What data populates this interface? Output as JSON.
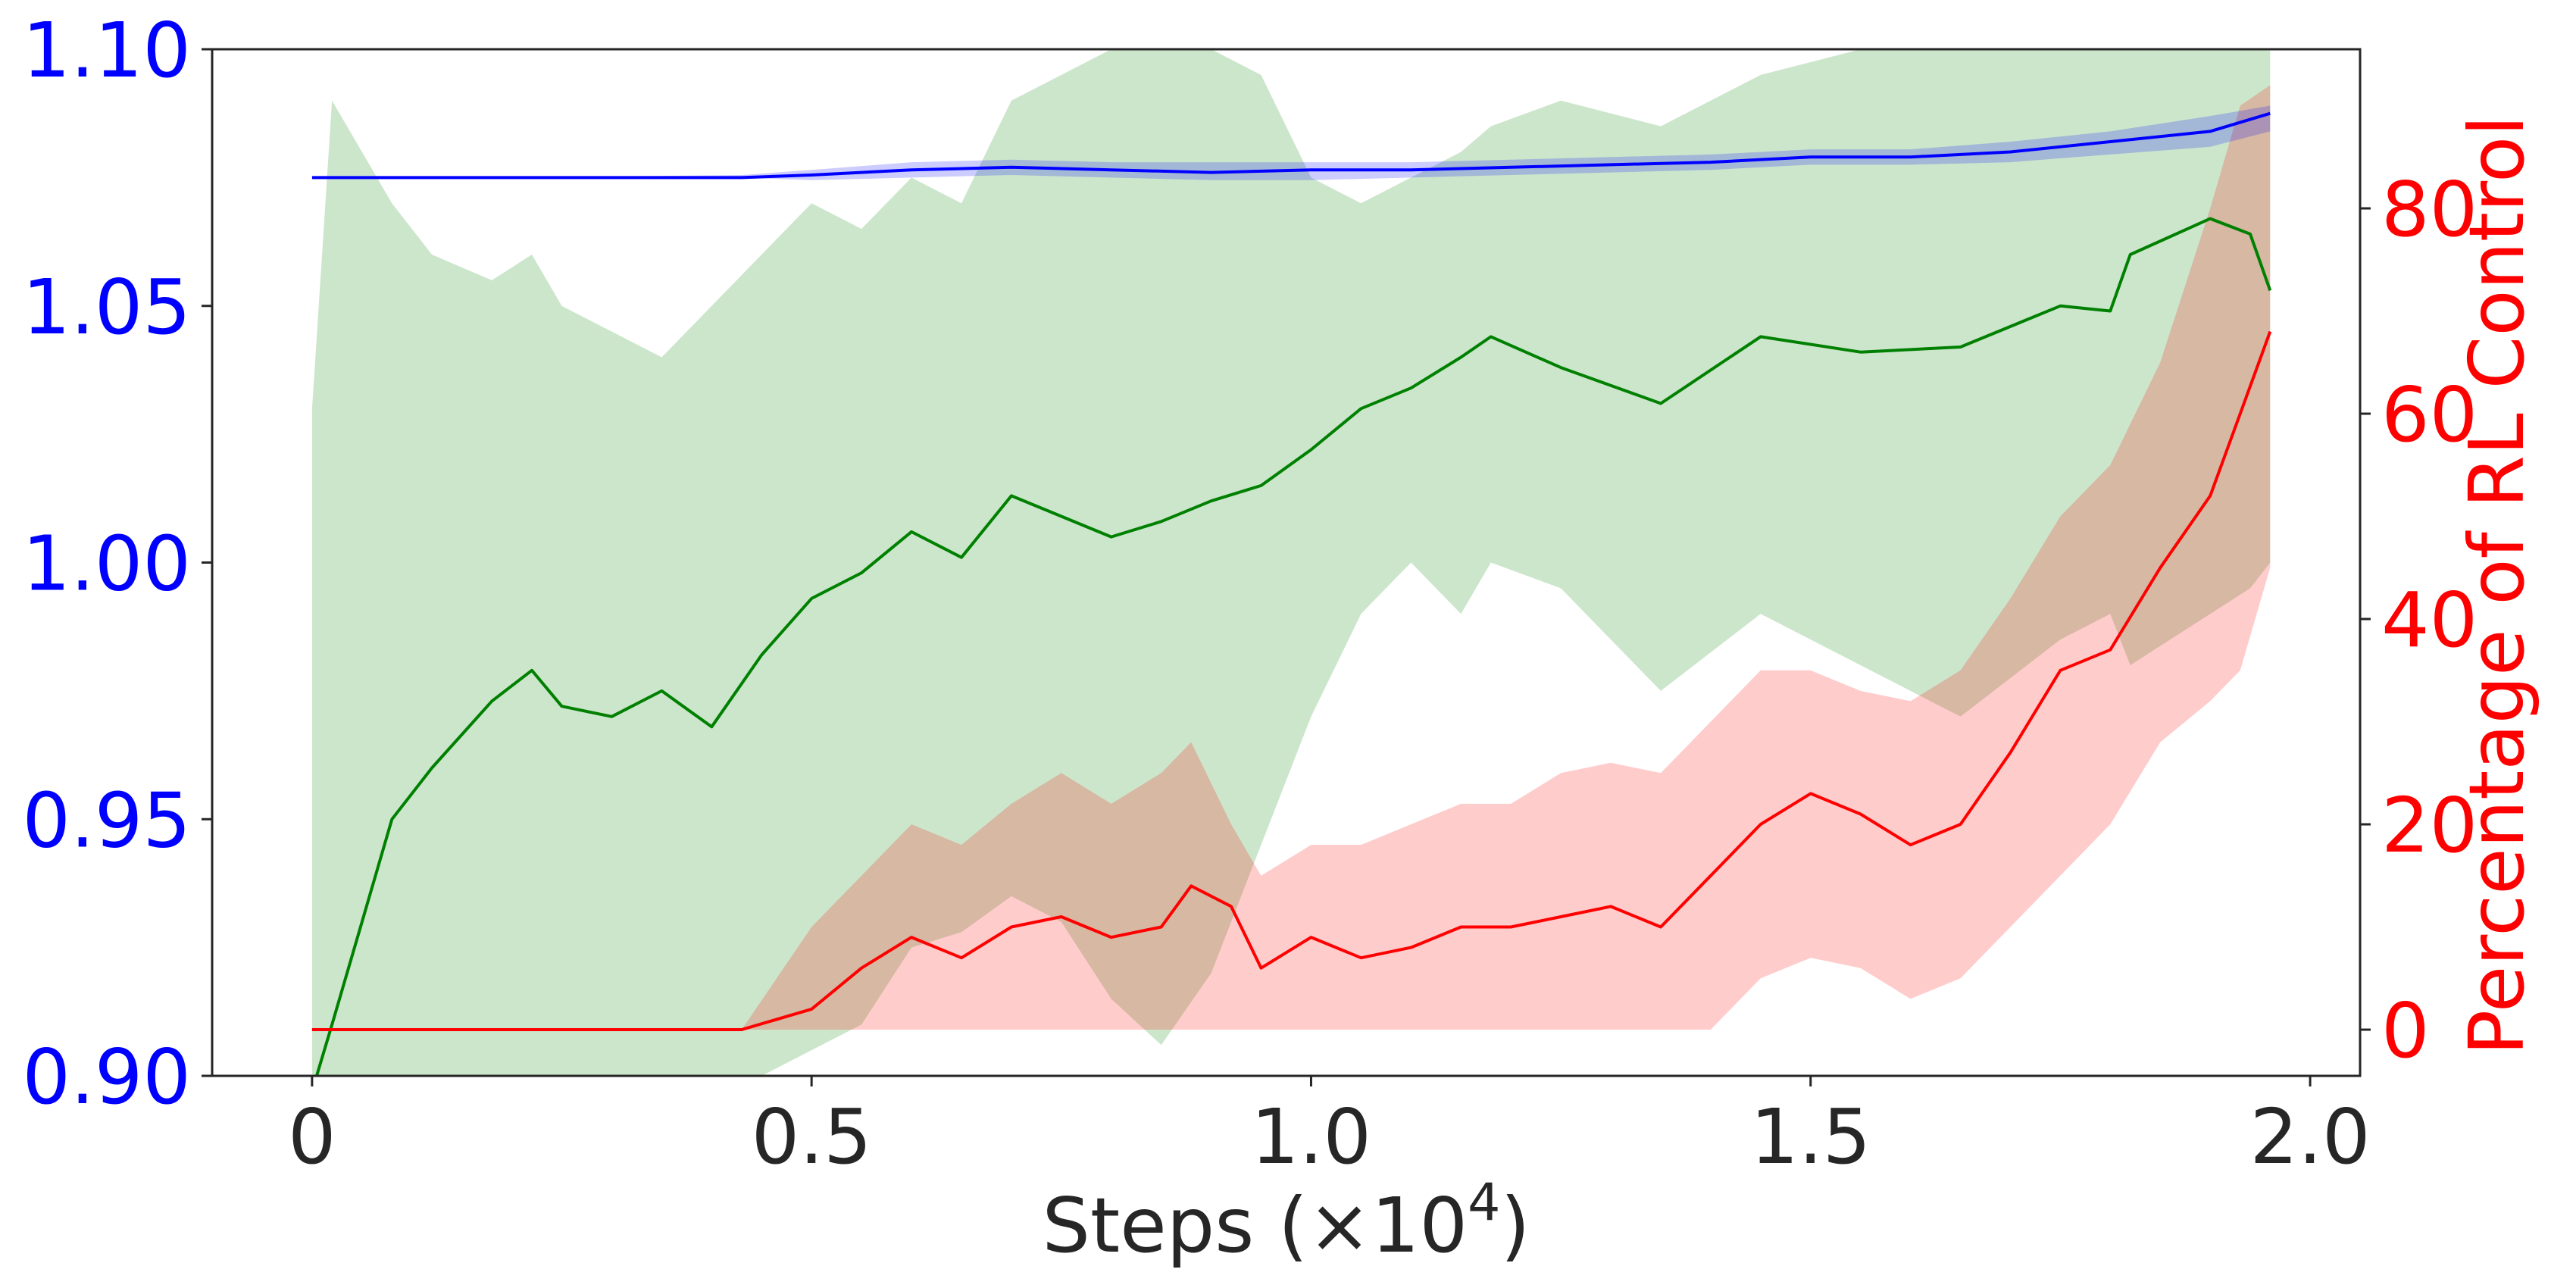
{
  "chart_data": {
    "type": "line",
    "title": "",
    "xlabel": "Steps (×10⁴)",
    "xlabel_base": "Steps (×10",
    "xlabel_exp": "4",
    "xlabel_close": ")",
    "ylabel_left": "",
    "ylabel_right": "Percentage of RL Control",
    "xlim": [
      -0.1,
      2.05
    ],
    "ylim_left": [
      0.9,
      1.1
    ],
    "ylim_right": [
      -4.5,
      95.5
    ],
    "xticks": [
      0,
      0.5,
      1.0,
      1.5,
      2.0
    ],
    "xtick_labels": [
      "0",
      "0.5",
      "1.0",
      "1.5",
      "2.0"
    ],
    "yticks_left": [
      0.9,
      0.95,
      1.0,
      1.05,
      1.1
    ],
    "ytick_labels_left": [
      "0.90",
      "0.95",
      "1.00",
      "1.05",
      "1.10"
    ],
    "yticks_right": [
      0,
      20,
      40,
      60,
      80
    ],
    "ytick_labels_right": [
      "0",
      "20",
      "40",
      "60",
      "80"
    ],
    "grid": false,
    "legend": "none",
    "colors": {
      "blue": "#0000ff",
      "green": "#008000",
      "red": "#ff0000",
      "axis_text": "#262626"
    },
    "series": [
      {
        "color": "blue",
        "axis": "left",
        "x": [
          0,
          0.2,
          0.43,
          0.5,
          0.6,
          0.7,
          0.8,
          0.9,
          1.0,
          1.1,
          1.2,
          1.3,
          1.4,
          1.5,
          1.6,
          1.7,
          1.8,
          1.9,
          1.96
        ],
        "y": [
          1.075,
          1.075,
          1.075,
          1.0755,
          1.0765,
          1.077,
          1.0765,
          1.076,
          1.0765,
          1.0765,
          1.077,
          1.0775,
          1.078,
          1.079,
          1.079,
          1.08,
          1.082,
          1.084,
          1.0875
        ],
        "band_lower": [
          1.075,
          1.075,
          1.075,
          1.0745,
          1.075,
          1.0755,
          1.075,
          1.0745,
          1.0745,
          1.075,
          1.0755,
          1.076,
          1.0765,
          1.0775,
          1.0775,
          1.078,
          1.0795,
          1.081,
          1.084
        ],
        "band_upper": [
          1.075,
          1.075,
          1.0755,
          1.0765,
          1.078,
          1.0785,
          1.078,
          1.078,
          1.078,
          1.078,
          1.0785,
          1.079,
          1.0795,
          1.0805,
          1.0805,
          1.082,
          1.084,
          1.087,
          1.089
        ]
      },
      {
        "color": "green",
        "axis": "left",
        "x": [
          0,
          0.02,
          0.05,
          0.08,
          0.12,
          0.18,
          0.22,
          0.25,
          0.3,
          0.35,
          0.4,
          0.45,
          0.5,
          0.55,
          0.6,
          0.65,
          0.7,
          0.75,
          0.8,
          0.85,
          0.9,
          0.95,
          1.0,
          1.05,
          1.1,
          1.15,
          1.18,
          1.25,
          1.35,
          1.45,
          1.55,
          1.65,
          1.75,
          1.8,
          1.82,
          1.9,
          1.94,
          1.96
        ],
        "y": [
          0.897,
          0.91,
          0.93,
          0.95,
          0.96,
          0.973,
          0.979,
          0.972,
          0.97,
          0.975,
          0.968,
          0.982,
          0.993,
          0.998,
          1.006,
          1.001,
          1.013,
          1.009,
          1.005,
          1.008,
          1.012,
          1.015,
          1.022,
          1.03,
          1.034,
          1.04,
          1.044,
          1.038,
          1.031,
          1.044,
          1.041,
          1.042,
          1.05,
          1.049,
          1.06,
          1.067,
          1.064,
          1.053
        ],
        "band_lower": [
          0.88,
          0.88,
          0.88,
          0.88,
          0.88,
          0.88,
          0.88,
          0.88,
          0.88,
          0.88,
          0.88,
          0.9,
          0.905,
          0.91,
          0.925,
          0.928,
          0.935,
          0.93,
          0.915,
          0.906,
          0.92,
          0.945,
          0.97,
          0.99,
          1.0,
          0.99,
          1.0,
          0.995,
          0.975,
          0.99,
          0.98,
          0.97,
          0.985,
          0.99,
          0.98,
          0.99,
          0.995,
          1.0
        ],
        "band_upper": [
          1.03,
          1.09,
          1.08,
          1.07,
          1.06,
          1.055,
          1.06,
          1.05,
          1.045,
          1.04,
          1.05,
          1.06,
          1.07,
          1.065,
          1.075,
          1.07,
          1.09,
          1.095,
          1.1,
          1.1,
          1.1,
          1.095,
          1.075,
          1.07,
          1.075,
          1.08,
          1.085,
          1.09,
          1.085,
          1.095,
          1.1,
          1.1,
          1.1,
          1.1,
          1.1,
          1.1,
          1.1,
          1.1
        ]
      },
      {
        "color": "red",
        "axis": "right",
        "x": [
          0,
          0.2,
          0.43,
          0.5,
          0.55,
          0.6,
          0.65,
          0.7,
          0.75,
          0.8,
          0.85,
          0.88,
          0.92,
          0.95,
          1.0,
          1.05,
          1.1,
          1.15,
          1.2,
          1.25,
          1.3,
          1.35,
          1.4,
          1.45,
          1.5,
          1.55,
          1.6,
          1.65,
          1.7,
          1.75,
          1.8,
          1.85,
          1.9,
          1.93,
          1.96
        ],
        "y": [
          0,
          0,
          0,
          2,
          6,
          9,
          7,
          10,
          11,
          9,
          10,
          14,
          12,
          6,
          9,
          7,
          8,
          10,
          10,
          11,
          12,
          10,
          15,
          20,
          23,
          21,
          18,
          20,
          27,
          35,
          37,
          45,
          52,
          60,
          68
        ],
        "band_lower": [
          0,
          0,
          0,
          0,
          0,
          0,
          0,
          0,
          0,
          0,
          0,
          0,
          0,
          0,
          0,
          0,
          0,
          0,
          0,
          0,
          0,
          0,
          0,
          5,
          7,
          6,
          3,
          5,
          10,
          15,
          20,
          28,
          32,
          35,
          45
        ],
        "band_upper": [
          0,
          0,
          0,
          10,
          15,
          20,
          18,
          22,
          25,
          22,
          25,
          28,
          20,
          15,
          18,
          18,
          20,
          22,
          22,
          25,
          26,
          25,
          30,
          35,
          35,
          33,
          32,
          35,
          42,
          50,
          55,
          65,
          80,
          90,
          92
        ]
      }
    ]
  }
}
